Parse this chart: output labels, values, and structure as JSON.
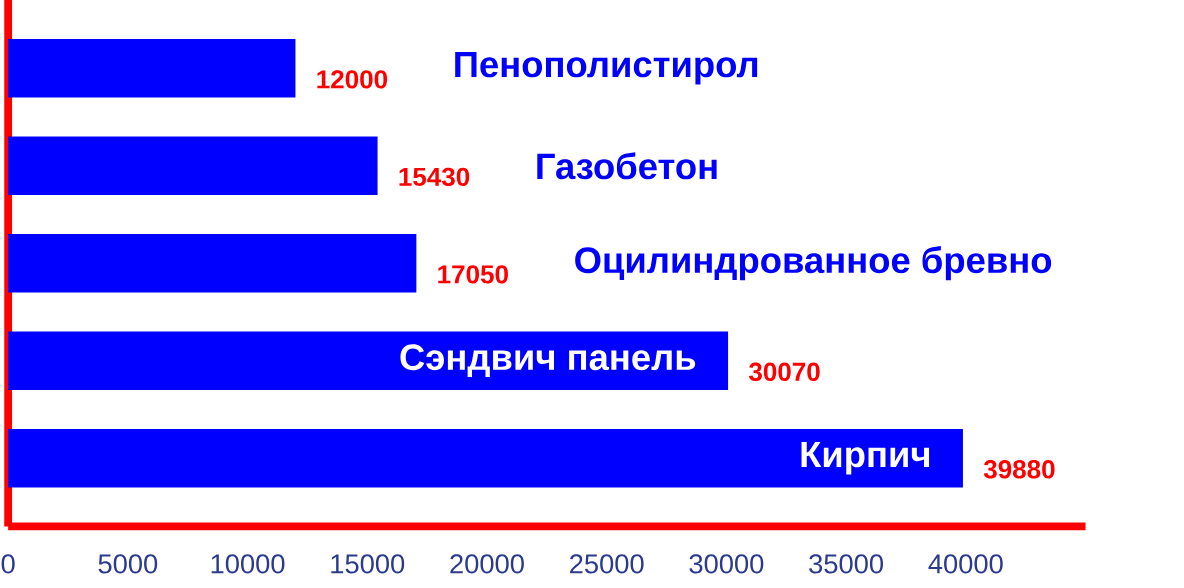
{
  "chart_data": {
    "type": "bar",
    "orientation": "horizontal",
    "categories": [
      "Пенополистирол",
      "Газобетон",
      "Оцилиндрованное бревно",
      "Сэндвич панель",
      "Кирпич"
    ],
    "values": [
      12000,
      15430,
      17050,
      30070,
      39880
    ],
    "color": "#0000ff",
    "xlim": [
      0,
      45000
    ],
    "xticks": [
      0,
      5000,
      10000,
      15000,
      20000,
      25000,
      30000,
      35000,
      40000
    ],
    "data_labels": true
  }
}
